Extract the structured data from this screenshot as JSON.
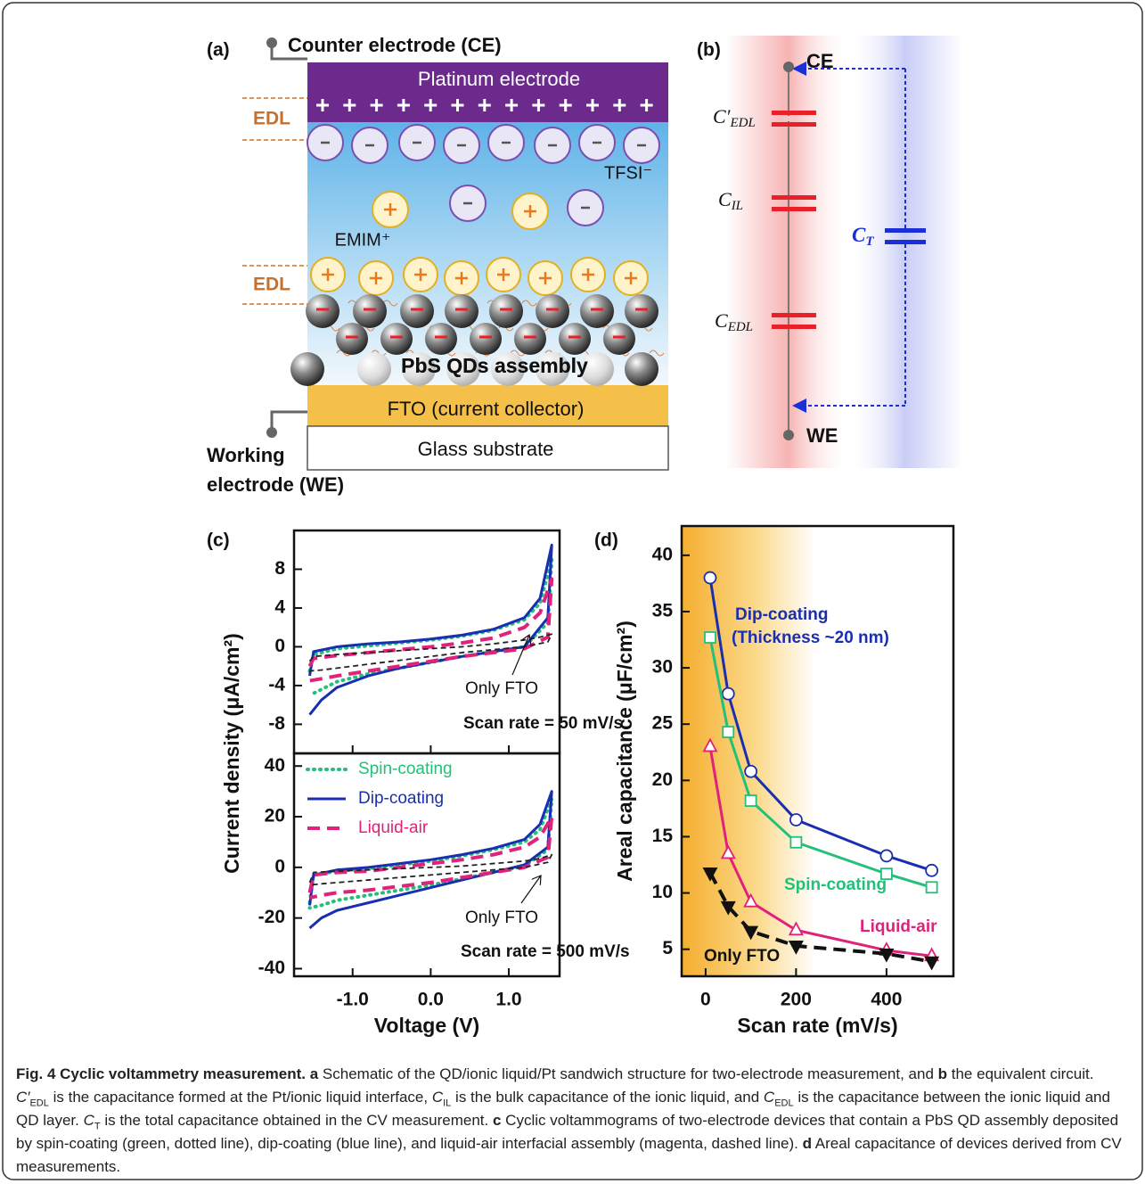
{
  "panel_a": {
    "label": "(a)",
    "counter_electrode": "Counter electrode (CE)",
    "platinum": "Platinum electrode",
    "edl": [
      "EDL",
      "EDL"
    ],
    "anion": "TFSI⁻",
    "cation": "EMIM⁺",
    "qds": "PbS QDs assembly",
    "fto": "FTO (current collector)",
    "glass": "Glass substrate",
    "working_electrode": [
      "Working",
      "electrode (WE)"
    ]
  },
  "panel_b": {
    "label": "(b)",
    "ce": "CE",
    "we": "WE",
    "capacitors": [
      {
        "base": "C′",
        "sub": "EDL"
      },
      {
        "base": "C",
        "sub": "IL"
      },
      {
        "base": "C",
        "sub": "T"
      },
      {
        "base": "C",
        "sub": "EDL"
      }
    ]
  },
  "panels": {
    "c": "(c)",
    "d": "(d)"
  },
  "chart_data": [
    {
      "type": "line",
      "y_label": "Current density (μA/cm²)",
      "x": [
        -1.55,
        -1.5,
        -1.2,
        -0.8,
        -0.4,
        0,
        0.4,
        0.8,
        1.2,
        1.4,
        1.55,
        1.5,
        1.2,
        0.8,
        0.4,
        0,
        -0.4,
        -0.8,
        -1.2,
        -1.4,
        -1.55
      ],
      "xlim": [
        -1.75,
        1.65
      ],
      "ylim": [
        -11,
        12
      ],
      "yticks": [
        -8,
        -4,
        0,
        4,
        8
      ],
      "series": [
        {
          "color": "#22c07a",
          "dash": "dotted",
          "values": [
            -2.5,
            -0.8,
            -0.2,
            0.1,
            0.4,
            0.7,
            1.1,
            1.7,
            2.8,
            4.5,
            9,
            2.5,
            0,
            -0.5,
            -1,
            -1.6,
            -2.2,
            -2.8,
            -3.6,
            -4.4,
            -5
          ]
        },
        {
          "color": "#1a2fb0",
          "dash": "solid",
          "values": [
            -3,
            -0.5,
            0,
            0.3,
            0.5,
            0.8,
            1.2,
            1.8,
            3,
            5,
            10.5,
            3,
            0,
            -0.5,
            -1,
            -1.6,
            -2.2,
            -3,
            -4.2,
            -5.5,
            -7
          ]
        },
        {
          "color": "#e0227a",
          "dash": "dashed",
          "values": [
            -2,
            -1.2,
            -0.9,
            -0.6,
            -0.3,
            0,
            0.4,
            0.9,
            2,
            3.5,
            7,
            1,
            -0.2,
            -0.6,
            -1,
            -1.5,
            -2,
            -2.5,
            -3,
            -3.3,
            -3.5
          ]
        },
        {
          "color": "#222222",
          "dash": "thin-dashed",
          "values": [
            -1.5,
            -1,
            -0.8,
            -0.6,
            -0.4,
            -0.2,
            0,
            0.3,
            0.7,
            1,
            1.3,
            0.5,
            0,
            -0.3,
            -0.6,
            -1,
            -1.4,
            -1.8,
            -2.2,
            -2.4,
            -2.5
          ]
        }
      ],
      "annotations": [
        {
          "text": "Only FTO"
        },
        {
          "text": "Scan rate = 50 mV/s"
        }
      ]
    },
    {
      "type": "line",
      "x_label": "Voltage (V)",
      "x": [
        -1.55,
        -1.5,
        -1.2,
        -0.8,
        -0.4,
        0,
        0.4,
        0.8,
        1.2,
        1.4,
        1.55,
        1.5,
        1.2,
        0.8,
        0.4,
        0,
        -0.4,
        -0.8,
        -1.2,
        -1.4,
        -1.55
      ],
      "xlim": [
        -1.75,
        1.65
      ],
      "ylim": [
        -43,
        45
      ],
      "yticks": [
        -40,
        -20,
        0,
        20,
        40
      ],
      "xticks": [
        {
          "value": -1,
          "label": "-1.0"
        },
        {
          "value": 0,
          "label": "0.0"
        },
        {
          "value": 1,
          "label": "1.0"
        }
      ],
      "legend": "top-left",
      "series": [
        {
          "name": "Spin-coating",
          "color": "#22c07a",
          "dash": "dotted",
          "values": [
            -14,
            -3,
            -1.5,
            -0.5,
            1,
            2.5,
            4.5,
            7,
            10,
            15,
            27,
            7,
            0.5,
            -2,
            -4.5,
            -7,
            -9,
            -11,
            -13,
            -15,
            -16
          ]
        },
        {
          "name": "Dip-coating",
          "color": "#1a2fb0",
          "dash": "solid",
          "values": [
            -15,
            -3,
            -1,
            0,
            1.5,
            3,
            5,
            7.5,
            11,
            17,
            30,
            8,
            1,
            -2,
            -5,
            -8,
            -11,
            -14,
            -17,
            -20,
            -24
          ]
        },
        {
          "name": "Liquid-air",
          "color": "#e0227a",
          "dash": "dashed",
          "values": [
            -10,
            -3,
            -2,
            -1.5,
            0,
            1.5,
            3,
            5,
            8,
            12,
            20,
            4,
            0,
            -2,
            -4,
            -6,
            -7.5,
            -9,
            -10,
            -11,
            -12
          ]
        },
        {
          "color": "#222222",
          "dash": "thin-dashed",
          "values": [
            -6,
            -2,
            -1.5,
            -1,
            -0.5,
            0,
            0.5,
            1.5,
            2.5,
            3.5,
            5,
            2,
            0,
            -1,
            -2,
            -3,
            -4,
            -5,
            -6,
            -6.5,
            -7
          ]
        }
      ],
      "annotations": [
        {
          "text": "Only FTO"
        },
        {
          "text": "Scan rate = 500 mV/s"
        }
      ]
    },
    {
      "type": "line",
      "x_label": "Scan rate (mV/s)",
      "y_label": "Areal capacitance (μF/cm²)",
      "x": [
        10,
        50,
        100,
        200,
        400,
        500
      ],
      "xlim": [
        -53,
        548
      ],
      "ylim": [
        2.6,
        42.6
      ],
      "xticks": [
        0,
        200,
        400
      ],
      "yticks": [
        5,
        10,
        15,
        20,
        25,
        30,
        35,
        40
      ],
      "series": [
        {
          "color": "#1a2fb0",
          "dash": "solid",
          "marker": "circle",
          "values": [
            38,
            27.7,
            20.8,
            16.5,
            13.3,
            12
          ]
        },
        {
          "color": "#22c07a",
          "dash": "solid",
          "marker": "square",
          "values": [
            32.7,
            24.3,
            18.2,
            14.5,
            11.7,
            10.5
          ]
        },
        {
          "color": "#e0227a",
          "dash": "solid",
          "marker": "triangle",
          "values": [
            23,
            13.5,
            9.2,
            6.7,
            4.9,
            4.4
          ]
        },
        {
          "color": "#111111",
          "dash": "dashed",
          "marker": "triangle-down-filled",
          "values": [
            11.8,
            8.8,
            6.6,
            5.3,
            4.6,
            3.9
          ]
        }
      ],
      "annotations": [
        {
          "text": "Dip-coating",
          "color": "#1a2fb0"
        },
        {
          "text": "(Thickness ~20 nm)",
          "color": "#1a2fb0"
        },
        {
          "text": "Spin-coating",
          "color": "#22c07a"
        },
        {
          "text": "Liquid-air",
          "color": "#e0227a"
        },
        {
          "text": "Only FTO",
          "color": "#111111"
        }
      ]
    }
  ],
  "caption": {
    "runs": [
      {
        "text": "Fig. 4 Cyclic voltammetry measurement. a",
        "style": "bold"
      },
      {
        "text": " Schematic of the QD/ionic liquid/Pt sandwich structure for two-electrode measurement, and ",
        "style": "normal"
      },
      {
        "text": "b",
        "style": "bold"
      },
      {
        "text": " the equivalent circuit. ",
        "style": "normal"
      },
      {
        "text": "C′",
        "style": "italic"
      },
      {
        "text": "EDL",
        "style": "sub"
      },
      {
        "text": " is the capacitance formed at the Pt/ionic liquid interface, ",
        "style": "normal"
      },
      {
        "text": "C",
        "style": "italic"
      },
      {
        "text": "IL",
        "style": "sub"
      },
      {
        "text": " is the bulk capacitance of the ionic liquid, and ",
        "style": "normal"
      },
      {
        "text": "C",
        "style": "italic"
      },
      {
        "text": "EDL",
        "style": "sub"
      },
      {
        "text": " is the capacitance between the ionic liquid and QD layer. ",
        "style": "normal"
      },
      {
        "text": "C",
        "style": "italic"
      },
      {
        "text": "T",
        "style": "sub"
      },
      {
        "text": " is the total capacitance obtained in the CV measurement. ",
        "style": "normal"
      },
      {
        "text": "c",
        "style": "bold"
      },
      {
        "text": " Cyclic voltammograms of two-electrode devices that contain a PbS QD assembly deposited by spin-coating (green, dotted line), dip-coating (blue line), and liquid-air interfacial assembly (magenta, dashed line). ",
        "style": "normal"
      },
      {
        "text": "d",
        "style": "bold"
      },
      {
        "text": " Areal capacitance of devices derived from CV measurements.",
        "style": "normal"
      }
    ]
  }
}
